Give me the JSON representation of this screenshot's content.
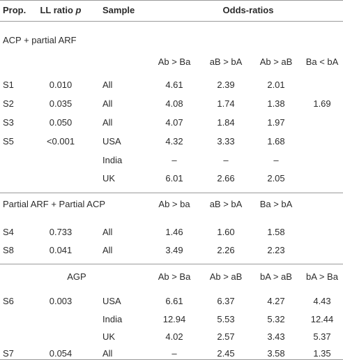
{
  "header": {
    "prop": "Prop.",
    "ll_ratio": "LL ratio",
    "ll_ratio_symbol": "p",
    "sample": "Sample",
    "odds_ratios": "Odds-ratios"
  },
  "sections": [
    {
      "title": "ACP + partial ARF",
      "subheaders": [
        "Ab > Ba",
        "aB > bA",
        "Ab > aB",
        "Ba < bA"
      ],
      "rows": [
        {
          "prop": "S1",
          "p": "0.010",
          "sample": "All",
          "ratios": [
            "4.61",
            "2.39",
            "2.01",
            null
          ]
        },
        {
          "prop": "S2",
          "p": "0.035",
          "sample": "All",
          "ratios": [
            "4.08",
            "1.74",
            "1.38",
            "1.69"
          ]
        },
        {
          "prop": "S3",
          "p": "0.050",
          "sample": "All",
          "ratios": [
            "4.07",
            "1.84",
            "1.97",
            null
          ]
        },
        {
          "prop": "S5",
          "p": "<0.001",
          "sample": "USA",
          "ratios": [
            "4.32",
            "3.33",
            "1.68",
            null
          ]
        },
        {
          "prop": null,
          "p": null,
          "sample": "India",
          "ratios": [
            "–",
            "–",
            "–",
            null
          ]
        },
        {
          "prop": null,
          "p": null,
          "sample": "UK",
          "ratios": [
            "6.01",
            "2.66",
            "2.05",
            null
          ]
        }
      ]
    },
    {
      "title": "Partial ARF + Partial ACP",
      "subheaders": [
        "Ab > ba",
        "aB > bA",
        "Ba > bA",
        null
      ],
      "rows": [
        {
          "prop": "S4",
          "p": "0.733",
          "sample": "All",
          "ratios": [
            "1.46",
            "1.60",
            "1.58",
            null
          ]
        },
        {
          "prop": "S8",
          "p": "0.041",
          "sample": "All",
          "ratios": [
            "3.49",
            "2.26",
            "2.23",
            null
          ]
        }
      ]
    },
    {
      "title": "AGP",
      "subheaders": [
        "Ab > Ba",
        "Ab > aB",
        "bA > aB",
        "bA > Ba"
      ],
      "rows": [
        {
          "prop": "S6",
          "p": "0.003",
          "sample": "USA",
          "ratios": [
            "6.61",
            "6.37",
            "4.27",
            "4.43"
          ]
        },
        {
          "prop": null,
          "p": null,
          "sample": "India",
          "ratios": [
            "12.94",
            "5.53",
            "5.32",
            "12.44"
          ]
        },
        {
          "prop": null,
          "p": null,
          "sample": "UK",
          "ratios": [
            "4.02",
            "2.57",
            "3.43",
            "5.37"
          ]
        },
        {
          "prop": "S7",
          "p": "0.054",
          "sample": "All",
          "ratios": [
            "–",
            "2.45",
            "3.58",
            "1.35"
          ]
        }
      ]
    }
  ]
}
